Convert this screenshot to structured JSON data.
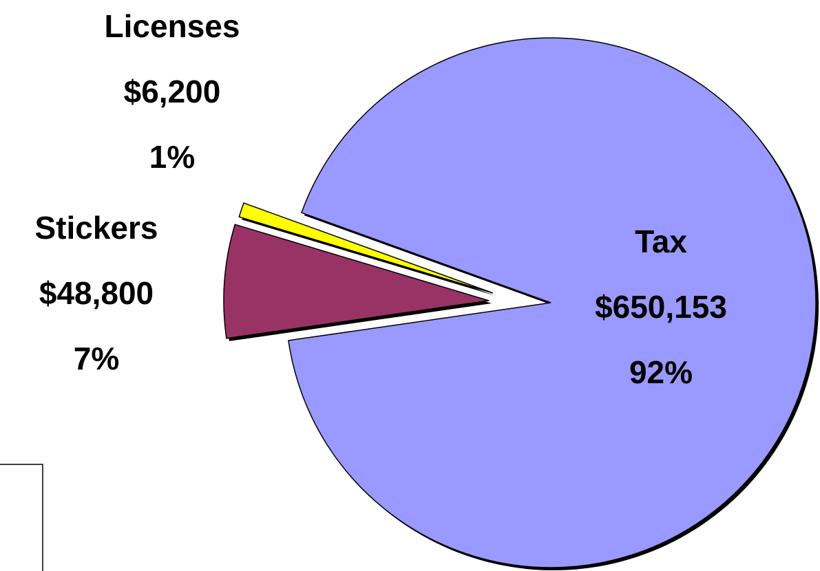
{
  "chart_data": {
    "type": "pie",
    "categories": [
      "Tax",
      "Stickers",
      "Licenses"
    ],
    "values": [
      650153,
      48800,
      6200
    ],
    "value_labels": [
      "$650,153",
      "$48,800",
      "$6,200"
    ],
    "percents": [
      92,
      7,
      1
    ],
    "percent_labels": [
      "92%",
      "7%",
      "1%"
    ],
    "colors": [
      "#9999ff",
      "#993366",
      "#ffff00"
    ]
  }
}
